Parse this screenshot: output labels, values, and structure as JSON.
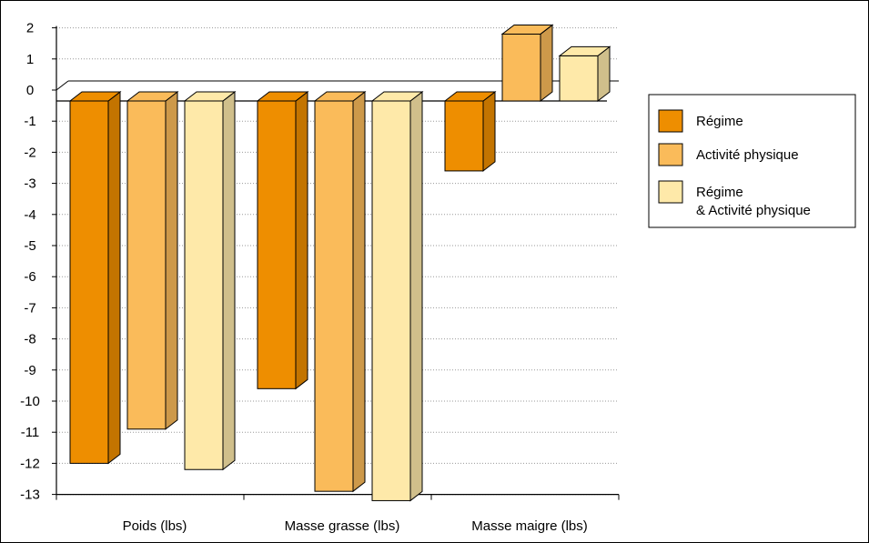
{
  "chart_data": {
    "type": "bar",
    "categories": [
      "Poids (lbs)",
      "Masse grasse (lbs)",
      "Masse maigre (lbs)"
    ],
    "series": [
      {
        "name": "Régime",
        "values": [
          -12.0,
          -9.6,
          -2.6
        ],
        "color": "#EE8E00"
      },
      {
        "name": "Activité physique",
        "values": [
          -10.9,
          -12.9,
          1.8
        ],
        "color": "#FABB5A"
      },
      {
        "name": "Régime\n& Activité physique",
        "values": [
          -12.2,
          -13.2,
          1.1
        ],
        "color": "#FEE9A9"
      }
    ],
    "yticks": [
      2,
      1,
      0,
      -1,
      -2,
      -3,
      -4,
      -5,
      -6,
      -7,
      -8,
      -9,
      -10,
      -11,
      -12,
      -13
    ],
    "ytick_labels": [
      "2",
      "1",
      "0",
      "-1",
      "-2",
      "-3",
      "-4",
      "-5",
      "-6",
      "-7",
      "-8",
      "-9",
      "-10",
      "-11",
      "-12",
      "-13"
    ],
    "ylim": [
      -13,
      2
    ],
    "grid": true,
    "legend_position": "right",
    "style": "3d"
  }
}
